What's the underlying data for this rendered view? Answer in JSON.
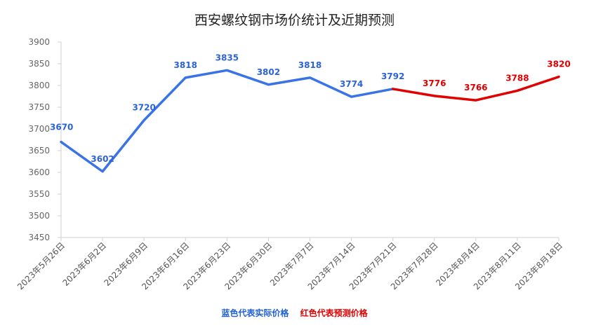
{
  "chart_data": {
    "type": "line",
    "title": "西安螺纹钢市场价统计及近期预测",
    "categories": [
      "2023年5月26日",
      "2023年6月2日",
      "2023年6月9日",
      "2023年6月16日",
      "2023年6月23日",
      "2023年6月30日",
      "2023年7月7日",
      "2023年7月14日",
      "2023年7月21日",
      "2023年7月28日",
      "2023年8月4日",
      "2023年8月11日",
      "2023年8月18日"
    ],
    "series": [
      {
        "values": [
          3670,
          3602,
          3720,
          3818,
          3835,
          3802,
          3818,
          3774,
          3792,
          null,
          null,
          null,
          null
        ],
        "color": "#3a72e8",
        "label_color": "#2b63d9"
      },
      {
        "values": [
          null,
          null,
          null,
          null,
          null,
          null,
          null,
          null,
          3792,
          3776,
          3766,
          3788,
          3820
        ],
        "color": "#e00000",
        "label_color": "#e00000"
      }
    ],
    "point_labels": [
      "3670",
      "3602",
      "3720",
      "3818",
      "3835",
      "3802",
      "3818",
      "3774",
      "3792",
      "3776",
      "3766",
      "3788",
      "3820"
    ],
    "label_colors": [
      "#2b63d9",
      "#2b63d9",
      "#2b63d9",
      "#2b63d9",
      "#2b63d9",
      "#2b63d9",
      "#2b63d9",
      "#2b63d9",
      "#2b63d9",
      "#e00000",
      "#e00000",
      "#e00000",
      "#e00000"
    ],
    "ylim": [
      3450,
      3900
    ],
    "yticks": [
      3450,
      3500,
      3550,
      3600,
      3650,
      3700,
      3750,
      3800,
      3850,
      3900
    ],
    "grid": false,
    "legend": [
      {
        "text": "蓝色代表实际价格",
        "color": "#1f5fd6"
      },
      {
        "text": "红色代表预测价格",
        "color": "#e00000"
      }
    ]
  }
}
